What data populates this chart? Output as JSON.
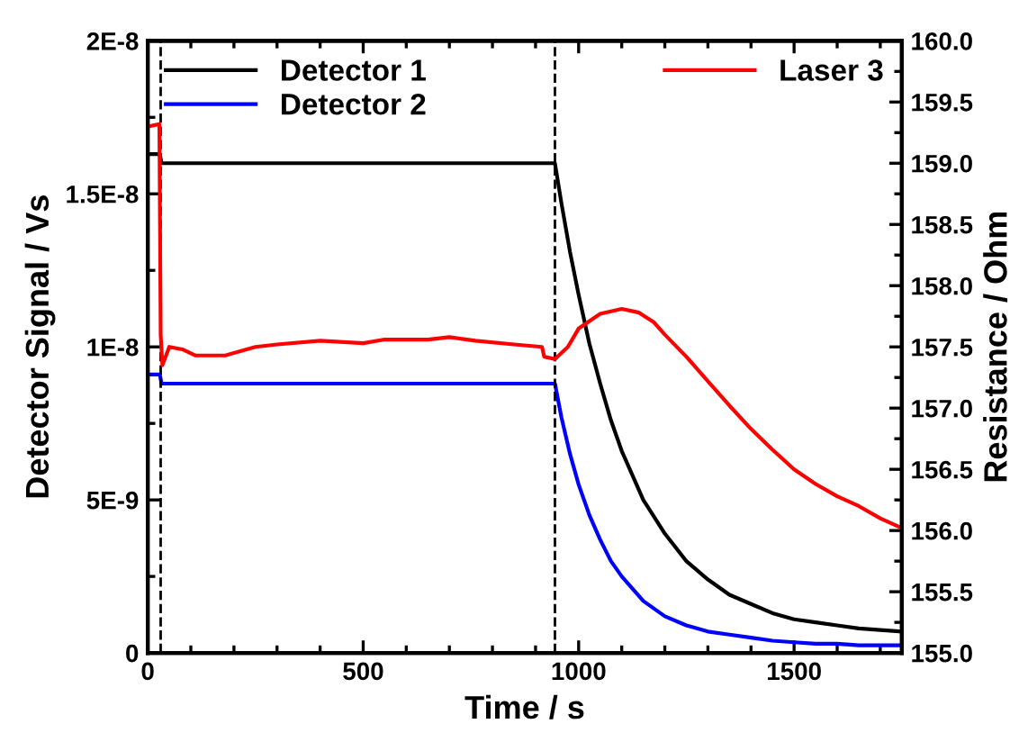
{
  "chart_data": {
    "type": "line",
    "xlabel": "Time / s",
    "ylabel": "Detector Signal / Vs",
    "y2label": "Resistance / Ohm",
    "xlim": [
      0,
      1750
    ],
    "xticks": [
      0,
      500,
      1000,
      1500
    ],
    "ylim": [
      0,
      2e-08
    ],
    "yticks": [
      {
        "value": 0,
        "label": "0"
      },
      {
        "value": 5e-09,
        "label": "5E-9"
      },
      {
        "value": 1e-08,
        "label": "1E-8"
      },
      {
        "value": 1.5e-08,
        "label": "1.5E-8"
      },
      {
        "value": 2e-08,
        "label": "2E-8"
      }
    ],
    "y2lim": [
      155.0,
      160.0
    ],
    "y2ticks": [
      {
        "value": 155.0,
        "label": "155.0"
      },
      {
        "value": 155.5,
        "label": "155.5"
      },
      {
        "value": 156.0,
        "label": "156.0"
      },
      {
        "value": 156.5,
        "label": "156.5"
      },
      {
        "value": 157.0,
        "label": "157.0"
      },
      {
        "value": 157.5,
        "label": "157.5"
      },
      {
        "value": 158.0,
        "label": "158.0"
      },
      {
        "value": 158.5,
        "label": "158.5"
      },
      {
        "value": 159.0,
        "label": "159.0"
      },
      {
        "value": 159.5,
        "label": "159.5"
      },
      {
        "value": 160.0,
        "label": "160.0"
      }
    ],
    "legend": "top",
    "grid": false,
    "marker": "none",
    "line_style": "solid",
    "series": [
      {
        "name": "Detector 1",
        "color": "#000000",
        "x": [
          0,
          28,
          32,
          300,
          600,
          945,
          960,
          980,
          1000,
          1025,
          1050,
          1075,
          1100,
          1150,
          1200,
          1250,
          1300,
          1350,
          1400,
          1450,
          1500,
          1550,
          1600,
          1650,
          1700,
          1750
        ],
        "values": [
          1.63e-08,
          1.63e-08,
          1.6e-08,
          1.6e-08,
          1.6e-08,
          1.6e-08,
          1.47e-08,
          1.31e-08,
          1.17e-08,
          1.01e-08,
          8.8e-09,
          7.6e-09,
          6.6e-09,
          5e-09,
          3.9e-09,
          3e-09,
          2.4e-09,
          1.9e-09,
          1.6e-09,
          1.3e-09,
          1.1e-09,
          1e-09,
          9e-10,
          8e-10,
          7.5e-10,
          7e-10
        ]
      },
      {
        "name": "Detector 2",
        "color": "#0000ff",
        "x": [
          0,
          28,
          32,
          300,
          600,
          945,
          960,
          980,
          1000,
          1025,
          1050,
          1075,
          1100,
          1150,
          1200,
          1250,
          1300,
          1350,
          1400,
          1450,
          1500,
          1550,
          1600,
          1650,
          1700,
          1750
        ],
        "values": [
          9.1e-09,
          9.1e-09,
          8.8e-09,
          8.8e-09,
          8.8e-09,
          8.8e-09,
          7.7e-09,
          6.5e-09,
          5.5e-09,
          4.5e-09,
          3.7e-09,
          3e-09,
          2.5e-09,
          1.7e-09,
          1.2e-09,
          9e-10,
          7e-10,
          6e-10,
          5e-10,
          4e-10,
          3.5e-10,
          3e-10,
          3e-10,
          2.5e-10,
          2.5e-10,
          2.5e-10
        ]
      },
      {
        "name": "Laser 3",
        "color": "#ff0000",
        "axis": "y2",
        "x": [
          0,
          27,
          30,
          34,
          50,
          80,
          110,
          180,
          250,
          300,
          400,
          500,
          550,
          650,
          700,
          760,
          850,
          915,
          920,
          945,
          975,
          1000,
          1050,
          1100,
          1140,
          1175,
          1200,
          1250,
          1300,
          1350,
          1400,
          1450,
          1500,
          1550,
          1600,
          1650,
          1700,
          1750
        ],
        "values": [
          159.3,
          159.32,
          157.6,
          157.35,
          157.5,
          157.48,
          157.43,
          157.43,
          157.5,
          157.52,
          157.55,
          157.53,
          157.56,
          157.56,
          157.58,
          157.55,
          157.52,
          157.5,
          157.42,
          157.4,
          157.5,
          157.65,
          157.77,
          157.81,
          157.78,
          157.7,
          157.6,
          157.42,
          157.22,
          157.02,
          156.83,
          156.66,
          156.5,
          156.38,
          156.28,
          156.2,
          156.1,
          156.02
        ]
      }
    ],
    "ref_lines": [
      {
        "axis": "x",
        "value": 30,
        "color": "#000000",
        "line_style": "dashed"
      },
      {
        "axis": "x",
        "value": 945,
        "color": "#000000",
        "line_style": "dashed"
      }
    ]
  }
}
